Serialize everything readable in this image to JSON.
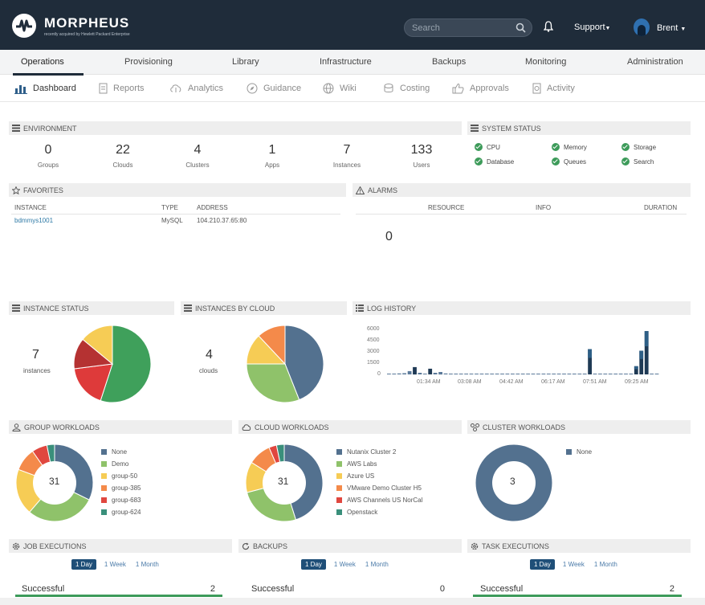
{
  "app": {
    "name": "MORPHEUS",
    "subtitle": "recently acquired by Hewlett Packard Enterprise"
  },
  "header": {
    "search_placeholder": "Search",
    "support_label": "Support",
    "user_name": "Brent"
  },
  "main_nav": {
    "tabs": [
      "Operations",
      "Provisioning",
      "Library",
      "Infrastructure",
      "Backups",
      "Monitoring",
      "Administration"
    ],
    "active": "Operations"
  },
  "sub_nav": {
    "items": [
      "Dashboard",
      "Reports",
      "Analytics",
      "Guidance",
      "Wiki",
      "Costing",
      "Approvals",
      "Activity"
    ],
    "active": "Dashboard"
  },
  "environment": {
    "title": "ENVIRONMENT",
    "stats": [
      {
        "label": "Groups",
        "value": "0"
      },
      {
        "label": "Clouds",
        "value": "22"
      },
      {
        "label": "Clusters",
        "value": "4"
      },
      {
        "label": "Apps",
        "value": "1"
      },
      {
        "label": "Instances",
        "value": "7"
      },
      {
        "label": "Users",
        "value": "133"
      }
    ]
  },
  "system_status": {
    "title": "SYSTEM STATUS",
    "items": [
      "CPU",
      "Memory",
      "Storage",
      "Database",
      "Queues",
      "Search"
    ],
    "color": "#3d9b5a"
  },
  "favorites": {
    "title": "FAVORITES",
    "columns": [
      "INSTANCE",
      "TYPE",
      "ADDRESS"
    ],
    "rows": [
      {
        "instance": "bdmmys1001",
        "type": "MySQL",
        "address": "104.210.37.65:80"
      }
    ]
  },
  "alarms": {
    "title": "ALARMS",
    "columns": [
      "RESOURCE",
      "INFO",
      "DURATION"
    ],
    "count": "0"
  },
  "instance_status": {
    "title": "INSTANCE STATUS",
    "count": "7",
    "label": "instances"
  },
  "instances_by_cloud": {
    "title": "INSTANCES BY CLOUD",
    "count": "4",
    "label": "clouds"
  },
  "log_history": {
    "title": "LOG HISTORY",
    "y_ticks": [
      "6000",
      "4500",
      "3000",
      "1500",
      "0"
    ],
    "x_ticks": [
      "01:34 AM",
      "03:08 AM",
      "04:42 AM",
      "06:17 AM",
      "07:51 AM",
      "09:25 AM"
    ]
  },
  "group_workloads": {
    "title": "GROUP WORKLOADS",
    "total": "31",
    "legend": [
      {
        "name": "None",
        "color": "#53718f"
      },
      {
        "name": "Demo",
        "color": "#8fc26a"
      },
      {
        "name": "group-50",
        "color": "#f6cc55"
      },
      {
        "name": "group-385",
        "color": "#f48a4a"
      },
      {
        "name": "group-683",
        "color": "#e0473f"
      },
      {
        "name": "group-624",
        "color": "#3a8f7b"
      }
    ]
  },
  "cloud_workloads": {
    "title": "CLOUD WORKLOADS",
    "total": "31",
    "legend": [
      {
        "name": "Nutanix Cluster 2",
        "color": "#53718f"
      },
      {
        "name": "AWS Labs",
        "color": "#8fc26a"
      },
      {
        "name": "Azure US",
        "color": "#f6cc55"
      },
      {
        "name": "VMware Demo Cluster H5",
        "color": "#f48a4a"
      },
      {
        "name": "AWS Channels US NorCal",
        "color": "#e0473f"
      },
      {
        "name": "Openstack",
        "color": "#3a8f7b"
      }
    ]
  },
  "cluster_workloads": {
    "title": "CLUSTER WORKLOADS",
    "total": "3",
    "legend": [
      {
        "name": "None",
        "color": "#53718f"
      }
    ]
  },
  "job_executions": {
    "title": "JOB EXECUTIONS",
    "ranges": [
      "1 Day",
      "1 Week",
      "1 Month"
    ],
    "label": "Successful",
    "value": "2"
  },
  "backups": {
    "title": "BACKUPS",
    "ranges": [
      "1 Day",
      "1 Week",
      "1 Month"
    ],
    "label": "Successful",
    "value": "0"
  },
  "task_executions": {
    "title": "TASK EXECUTIONS",
    "ranges": [
      "1 Day",
      "1 Week",
      "1 Month"
    ],
    "label": "Successful",
    "value": "2"
  },
  "chart_data": [
    {
      "type": "pie",
      "series": [
        {
          "values": [
            55,
            18,
            13,
            14
          ]
        }
      ],
      "colors": [
        "#3fa05b",
        "#de3a3a",
        "#b53232",
        "#f6cc55"
      ]
    },
    {
      "type": "pie",
      "series": [
        {
          "values": [
            44,
            31,
            13,
            12
          ]
        }
      ],
      "colors": [
        "#53718f",
        "#8fc26a",
        "#f6cc55",
        "#f48a4a"
      ]
    },
    {
      "type": "bar",
      "series": [
        {
          "name": "",
          "values": [
            100,
            100,
            120,
            150,
            400,
            900,
            200,
            100,
            700,
            200,
            300,
            120,
            100,
            100,
            100,
            100,
            100,
            100,
            100,
            100,
            100,
            100,
            100,
            100,
            100,
            100,
            100,
            100,
            100,
            100,
            100,
            100,
            100,
            100,
            100,
            100,
            100,
            100,
            100,
            3100,
            100,
            100,
            100,
            100,
            100,
            100,
            100,
            100,
            1000,
            2900,
            5300,
            100,
            100
          ]
        }
      ],
      "ylim": [
        0,
        6000
      ]
    },
    {
      "type": "pie",
      "series": [
        {
          "values": [
            10,
            9,
            6,
            3,
            2,
            1
          ]
        }
      ]
    },
    {
      "type": "pie",
      "series": [
        {
          "values": [
            14,
            8,
            4,
            3,
            1,
            1
          ]
        }
      ]
    },
    {
      "type": "pie",
      "series": [
        {
          "values": [
            3
          ]
        }
      ]
    }
  ]
}
